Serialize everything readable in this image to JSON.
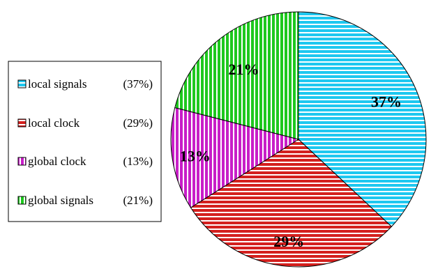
{
  "chart_data": {
    "type": "pie",
    "slices": [
      {
        "legend_name": "local signals",
        "legend_pct": "(37%)",
        "value": 37,
        "label": "37%",
        "color": "#1ec8f0",
        "pattern": "horizontal"
      },
      {
        "legend_name": "local clock",
        "legend_pct": "(29%)",
        "value": 29,
        "label": "29%",
        "color": "#d4201e",
        "pattern": "horizontal"
      },
      {
        "legend_name": "global clock",
        "legend_pct": "(13%)",
        "value": 13,
        "label": "13%",
        "color": "#c81ec8",
        "pattern": "vertical"
      },
      {
        "legend_name": "global signals",
        "legend_pct": "(21%)",
        "value": 21,
        "label": "21%",
        "color": "#1ec81e",
        "pattern": "vertical"
      }
    ],
    "start": "12 o'clock",
    "direction": "clockwise",
    "legend_placement": "left"
  }
}
